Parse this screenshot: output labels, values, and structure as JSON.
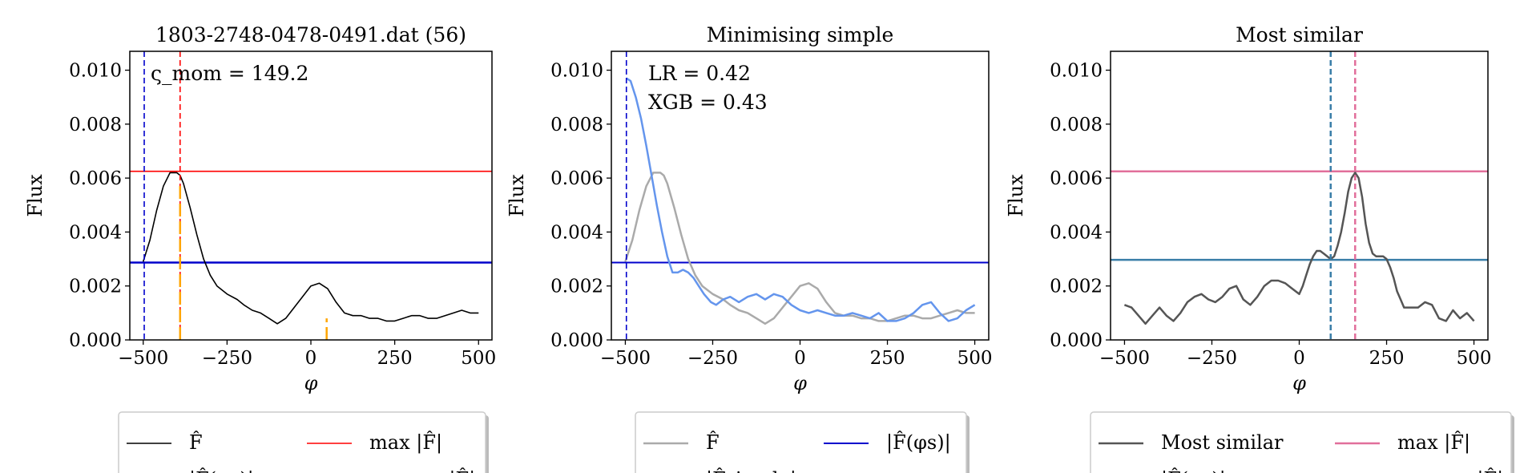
{
  "panels": [
    {
      "title": "1803-2748-0478-0491.dat (56)",
      "annotation": [
        "ς_mom = 149.2"
      ],
      "legend": [
        {
          "label": "F̂",
          "color": "#000000",
          "dash": "solid",
          "width": 1.6
        },
        {
          "label": "max |F̂|",
          "color": "#ff0000",
          "dash": "solid",
          "width": 1.6
        },
        {
          "label": "|F̂(φs)|",
          "color": "#0000cc",
          "dash": "solid",
          "width": 2.5
        },
        {
          "label": "argmax |F̂|",
          "color": "#ff0000",
          "dash": "dashed",
          "width": 1.6
        }
      ]
    },
    {
      "title": "Minimising simple",
      "annotation": [
        "LR = 0.42",
        "XGB = 0.43"
      ],
      "legend": [
        {
          "label": "F̂",
          "color": "#aaaaaa",
          "dash": "solid",
          "width": 2.5
        },
        {
          "label": "|F̂(φs)|",
          "color": "#0000cc",
          "dash": "solid",
          "width": 2
        },
        {
          "label": "|F̂simple|",
          "color": "#6495ed",
          "dash": "solid",
          "width": 2.5
        },
        {
          "label": "φs",
          "color": "#0000cc",
          "dash": "dashed",
          "width": 1.6
        }
      ]
    },
    {
      "title": "Most similar",
      "annotation": [],
      "legend": [
        {
          "label": "Most similar",
          "color": "#555555",
          "dash": "solid",
          "width": 2.5
        },
        {
          "label": "max |F̂|",
          "color": "#e16f9b",
          "dash": "solid",
          "width": 2.5
        },
        {
          "label": "|F̂(φs)|",
          "color": "#3a7ea8",
          "dash": "solid",
          "width": 2.5
        },
        {
          "label": "argmax |F̂|",
          "color": "#e16f9b",
          "dash": "dashed",
          "width": 2.5
        }
      ]
    }
  ],
  "chart_data": [
    {
      "type": "line",
      "title": "1803-2748-0478-0491.dat (56)",
      "xlabel": "φ",
      "ylabel": "Flux",
      "xlim": [
        -540,
        540
      ],
      "ylim": [
        0,
        0.0107
      ],
      "xticks": [
        -500,
        -250,
        0,
        250,
        500
      ],
      "xtick_labels": [
        "−500",
        "−250",
        "0",
        "250",
        "500"
      ],
      "yticks": [
        0.0,
        0.002,
        0.004,
        0.006,
        0.008,
        0.01
      ],
      "ytick_labels": [
        "0.000",
        "0.002",
        "0.004",
        "0.006",
        "0.008",
        "0.010"
      ],
      "series": [
        {
          "name": "F̂",
          "color": "#000000",
          "width": 1.6,
          "x": [
            -500,
            -480,
            -460,
            -440,
            -420,
            -400,
            -390,
            -380,
            -360,
            -340,
            -320,
            -300,
            -280,
            -250,
            -220,
            -200,
            -175,
            -150,
            -125,
            -100,
            -75,
            -50,
            -25,
            0,
            25,
            50,
            75,
            100,
            125,
            150,
            175,
            200,
            225,
            250,
            275,
            300,
            325,
            350,
            375,
            400,
            425,
            450,
            475,
            500
          ],
          "y": [
            0.0029,
            0.0037,
            0.0048,
            0.0057,
            0.0062,
            0.0062,
            0.0061,
            0.0058,
            0.0049,
            0.0039,
            0.003,
            0.0024,
            0.002,
            0.0017,
            0.0015,
            0.0013,
            0.0011,
            0.001,
            0.0008,
            0.0006,
            0.0008,
            0.0012,
            0.0016,
            0.002,
            0.0021,
            0.0019,
            0.0014,
            0.001,
            0.0009,
            0.0009,
            0.0008,
            0.0008,
            0.0007,
            0.0007,
            0.0008,
            0.0009,
            0.0009,
            0.0008,
            0.0008,
            0.0009,
            0.001,
            0.0011,
            0.001,
            0.001
          ]
        }
      ],
      "hlines": [
        {
          "y": 0.00625,
          "color": "#ff0000",
          "width": 1.6
        },
        {
          "y": 0.00287,
          "color": "#0000cc",
          "width": 2.5
        }
      ],
      "vlines": [
        {
          "x": -497,
          "color": "#0000cc",
          "dash": true,
          "width": 1.6
        },
        {
          "x": -390,
          "color": "#ff0000",
          "dash": true,
          "width": 1.6
        }
      ],
      "markers": [
        {
          "x": -390,
          "y0": 0,
          "y1": 0.0058,
          "color": "#ffa500"
        },
        {
          "x": 47,
          "y0": 0,
          "y1": 0.0008,
          "color": "#ffa500"
        }
      ]
    },
    {
      "type": "line",
      "title": "Minimising simple",
      "xlabel": "φ",
      "ylabel": "Flux",
      "xlim": [
        -540,
        540
      ],
      "ylim": [
        0,
        0.0107
      ],
      "xticks": [
        -500,
        -250,
        0,
        250,
        500
      ],
      "xtick_labels": [
        "−500",
        "−250",
        "0",
        "250",
        "500"
      ],
      "yticks": [
        0.0,
        0.002,
        0.004,
        0.006,
        0.008,
        0.01
      ],
      "ytick_labels": [
        "0.000",
        "0.002",
        "0.004",
        "0.006",
        "0.008",
        "0.010"
      ],
      "series": [
        {
          "name": "F̂",
          "color": "#aaaaaa",
          "width": 2.5,
          "x": [
            -500,
            -480,
            -460,
            -440,
            -420,
            -400,
            -390,
            -380,
            -360,
            -340,
            -320,
            -300,
            -280,
            -250,
            -220,
            -200,
            -175,
            -150,
            -125,
            -100,
            -75,
            -50,
            -25,
            0,
            25,
            50,
            75,
            100,
            125,
            150,
            175,
            200,
            225,
            250,
            275,
            300,
            325,
            350,
            375,
            400,
            425,
            450,
            475,
            500
          ],
          "y": [
            0.0029,
            0.0037,
            0.0048,
            0.0057,
            0.0062,
            0.0062,
            0.0061,
            0.0058,
            0.0049,
            0.0039,
            0.003,
            0.0024,
            0.002,
            0.0017,
            0.0015,
            0.0013,
            0.0011,
            0.001,
            0.0008,
            0.0006,
            0.0008,
            0.0012,
            0.0016,
            0.002,
            0.0021,
            0.0019,
            0.0014,
            0.001,
            0.0009,
            0.0009,
            0.0008,
            0.0008,
            0.0007,
            0.0007,
            0.0008,
            0.0009,
            0.0009,
            0.0008,
            0.0008,
            0.0009,
            0.001,
            0.0011,
            0.001,
            0.001
          ]
        },
        {
          "name": "|F̂simple|",
          "color": "#6495ed",
          "width": 2.5,
          "x": [
            -497,
            -485,
            -470,
            -455,
            -440,
            -425,
            -410,
            -395,
            -380,
            -365,
            -350,
            -335,
            -320,
            -305,
            -290,
            -275,
            -255,
            -240,
            -220,
            -200,
            -175,
            -150,
            -125,
            -100,
            -75,
            -50,
            -25,
            0,
            25,
            50,
            75,
            100,
            125,
            150,
            175,
            200,
            225,
            250,
            275,
            300,
            325,
            350,
            375,
            400,
            425,
            450,
            475,
            500
          ],
          "y": [
            0.0097,
            0.0096,
            0.009,
            0.0082,
            0.0072,
            0.0061,
            0.005,
            0.004,
            0.0031,
            0.0025,
            0.0025,
            0.0026,
            0.0025,
            0.0023,
            0.002,
            0.0017,
            0.0014,
            0.0013,
            0.0015,
            0.0016,
            0.0014,
            0.0016,
            0.0017,
            0.0015,
            0.0017,
            0.0016,
            0.0013,
            0.0011,
            0.001,
            0.0011,
            0.001,
            0.0009,
            0.0009,
            0.001,
            0.0009,
            0.0008,
            0.001,
            0.0007,
            0.0007,
            0.0008,
            0.001,
            0.0013,
            0.0014,
            0.001,
            0.0007,
            0.0008,
            0.0011,
            0.0013
          ]
        }
      ],
      "hlines": [
        {
          "y": 0.00287,
          "color": "#0000cc",
          "width": 2
        }
      ],
      "vlines": [
        {
          "x": -497,
          "color": "#0000cc",
          "dash": true,
          "width": 1.6
        }
      ],
      "markers": []
    },
    {
      "type": "line",
      "title": "Most similar",
      "xlabel": "φ",
      "ylabel": "Flux",
      "xlim": [
        -540,
        540
      ],
      "ylim": [
        0,
        0.0107
      ],
      "xticks": [
        -500,
        -250,
        0,
        250,
        500
      ],
      "xtick_labels": [
        "−500",
        "−250",
        "0",
        "250",
        "500"
      ],
      "yticks": [
        0.0,
        0.002,
        0.004,
        0.006,
        0.008,
        0.01
      ],
      "ytick_labels": [
        "0.000",
        "0.002",
        "0.004",
        "0.006",
        "0.008",
        "0.010"
      ],
      "series": [
        {
          "name": "Most similar",
          "color": "#555555",
          "width": 2.5,
          "x": [
            -500,
            -480,
            -460,
            -440,
            -420,
            -400,
            -380,
            -360,
            -340,
            -320,
            -300,
            -280,
            -260,
            -240,
            -220,
            -200,
            -180,
            -160,
            -140,
            -120,
            -100,
            -80,
            -60,
            -40,
            -20,
            0,
            10,
            20,
            30,
            40,
            50,
            60,
            70,
            80,
            90,
            100,
            110,
            120,
            130,
            140,
            150,
            160,
            170,
            180,
            190,
            200,
            210,
            220,
            230,
            240,
            250,
            260,
            270,
            280,
            290,
            300,
            320,
            340,
            360,
            380,
            400,
            420,
            440,
            460,
            480,
            500
          ],
          "y": [
            0.0013,
            0.0012,
            0.0009,
            0.0006,
            0.0009,
            0.0012,
            0.0009,
            0.0007,
            0.001,
            0.0014,
            0.0016,
            0.0017,
            0.0015,
            0.0014,
            0.0016,
            0.0019,
            0.002,
            0.0015,
            0.0013,
            0.0016,
            0.002,
            0.0022,
            0.0022,
            0.0021,
            0.0019,
            0.0017,
            0.002,
            0.0024,
            0.0028,
            0.0031,
            0.0033,
            0.0033,
            0.0032,
            0.0031,
            0.003,
            0.0031,
            0.0035,
            0.004,
            0.0047,
            0.0055,
            0.006,
            0.0062,
            0.006,
            0.0053,
            0.0043,
            0.0036,
            0.0032,
            0.0031,
            0.0031,
            0.0031,
            0.003,
            0.0027,
            0.0023,
            0.0018,
            0.0015,
            0.0012,
            0.0012,
            0.0012,
            0.0014,
            0.0013,
            0.0008,
            0.0007,
            0.0011,
            0.0008,
            0.001,
            0.0007
          ]
        }
      ],
      "hlines": [
        {
          "y": 0.00625,
          "color": "#e16f9b",
          "width": 2.5
        },
        {
          "y": 0.00297,
          "color": "#3a7ea8",
          "width": 2.5
        }
      ],
      "vlines": [
        {
          "x": 90,
          "color": "#3a7ea8",
          "dash": true,
          "width": 2.5
        },
        {
          "x": 160,
          "color": "#e16f9b",
          "dash": true,
          "width": 2.5
        }
      ],
      "markers": []
    }
  ]
}
